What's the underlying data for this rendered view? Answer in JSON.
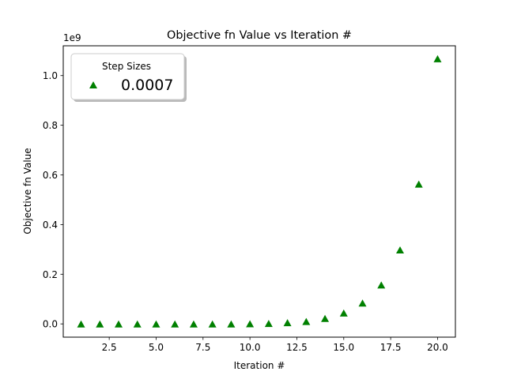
{
  "chart_data": {
    "type": "scatter",
    "title": "Objective fn Value vs Iteration #",
    "xlabel": "Iteration #",
    "ylabel": "Objective fn Value",
    "y_offset_label": "1e9",
    "xlim": [
      0.05,
      20.95
    ],
    "ylim": [
      -0.0534,
      1.12
    ],
    "x_ticks": [
      2.5,
      5.0,
      7.5,
      10.0,
      12.5,
      15.0,
      17.5,
      20.0
    ],
    "x_tick_labels": [
      "2.5",
      "5.0",
      "7.5",
      "10.0",
      "12.5",
      "15.0",
      "17.5",
      "20.0"
    ],
    "y_ticks": [
      0.0,
      0.2,
      0.4,
      0.6,
      0.8,
      1.0
    ],
    "y_tick_labels": [
      "0.0",
      "0.2",
      "0.4",
      "0.6",
      "0.8",
      "1.0"
    ],
    "grid": false,
    "legend": {
      "title": "Step Sizes",
      "placement": "top-left"
    },
    "series": [
      {
        "name": "0.0007",
        "marker": "triangle",
        "color": "#008000",
        "x": [
          1,
          2,
          3,
          4,
          5,
          6,
          7,
          8,
          9,
          10,
          11,
          12,
          13,
          14,
          15,
          16,
          17,
          18,
          19,
          20
        ],
        "y": [
          0.0,
          0.0,
          0.0,
          0.0,
          0.0,
          0.0,
          0.0,
          0.0,
          0.0,
          0.0005,
          0.002,
          0.005,
          0.01,
          0.022,
          0.044,
          0.084,
          0.157,
          0.298,
          0.563,
          1.068
        ]
      }
    ]
  }
}
